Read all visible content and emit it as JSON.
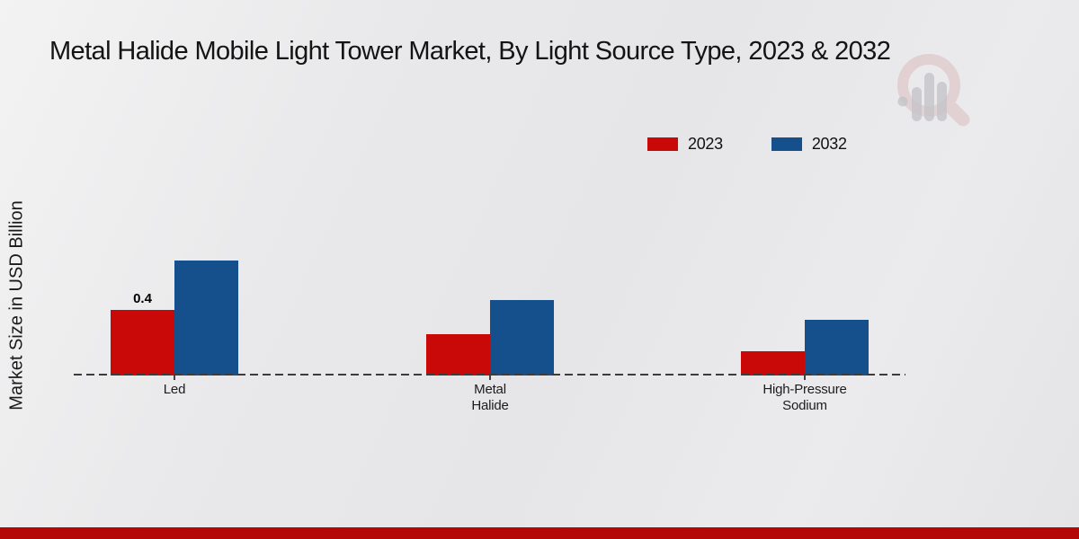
{
  "title": "Metal Halide Mobile Light Tower Market, By Light Source Type, 2023 & 2032",
  "y_axis_label": "Market Size in USD Billion",
  "legend": [
    {
      "label": "2023",
      "color": "#c90808"
    },
    {
      "label": "2032",
      "color": "#15508d"
    }
  ],
  "watermark_icon": "magnifier-bar-chart-logo",
  "footer_bar_color": "#b40707",
  "chart_data": {
    "type": "bar",
    "title": "Metal Halide Mobile Light Tower Market, By Light Source Type, 2023 & 2032",
    "xlabel": "",
    "ylabel": "Market Size in USD Billion",
    "categories": [
      "Led",
      "Metal Halide",
      "High-Pressure Sodium"
    ],
    "category_label_lines": [
      [
        "Led"
      ],
      [
        "Metal",
        "Halide"
      ],
      [
        "High-Pressure",
        "Sodium"
      ]
    ],
    "series": [
      {
        "name": "2023",
        "color": "#c90808",
        "values": [
          0.4,
          0.25,
          0.15
        ],
        "labels": [
          "0.4",
          "",
          ""
        ]
      },
      {
        "name": "2032",
        "color": "#15508d",
        "values": [
          0.7,
          0.46,
          0.34
        ],
        "labels": [
          "",
          "",
          ""
        ]
      }
    ],
    "ylim": [
      0,
      0.78
    ],
    "grid": false,
    "y_axis_ticks_visible": false,
    "legend_position": "top-right",
    "baseline_style": "dashed"
  }
}
